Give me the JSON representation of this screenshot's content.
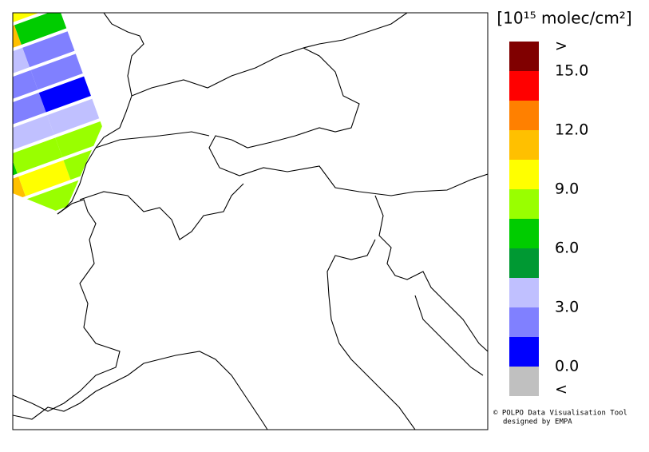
{
  "legend": {
    "title": "[10¹⁵ molec/cm²]",
    "colors": [
      "#800000",
      "#ff0000",
      "#ff8000",
      "#ffc000",
      "#ffff00",
      "#99ff00",
      "#00cc00",
      "#009933",
      "#c0c0ff",
      "#8080ff",
      "#0000ff",
      "#c0c0c0"
    ],
    "upper_label": ">",
    "lower_label": "<",
    "ticks": [
      {
        "value": 15,
        "label": "15.0"
      },
      {
        "value": 12,
        "label": "12.0"
      },
      {
        "value": 9,
        "label": "9.0"
      },
      {
        "value": 6,
        "label": "6.0"
      },
      {
        "value": 3,
        "label": "3.0"
      },
      {
        "value": 0,
        "label": "0.0"
      }
    ]
  },
  "credits": [
    "© POLPO Data Visualisation Tool",
    "designed by EMPA"
  ]
}
